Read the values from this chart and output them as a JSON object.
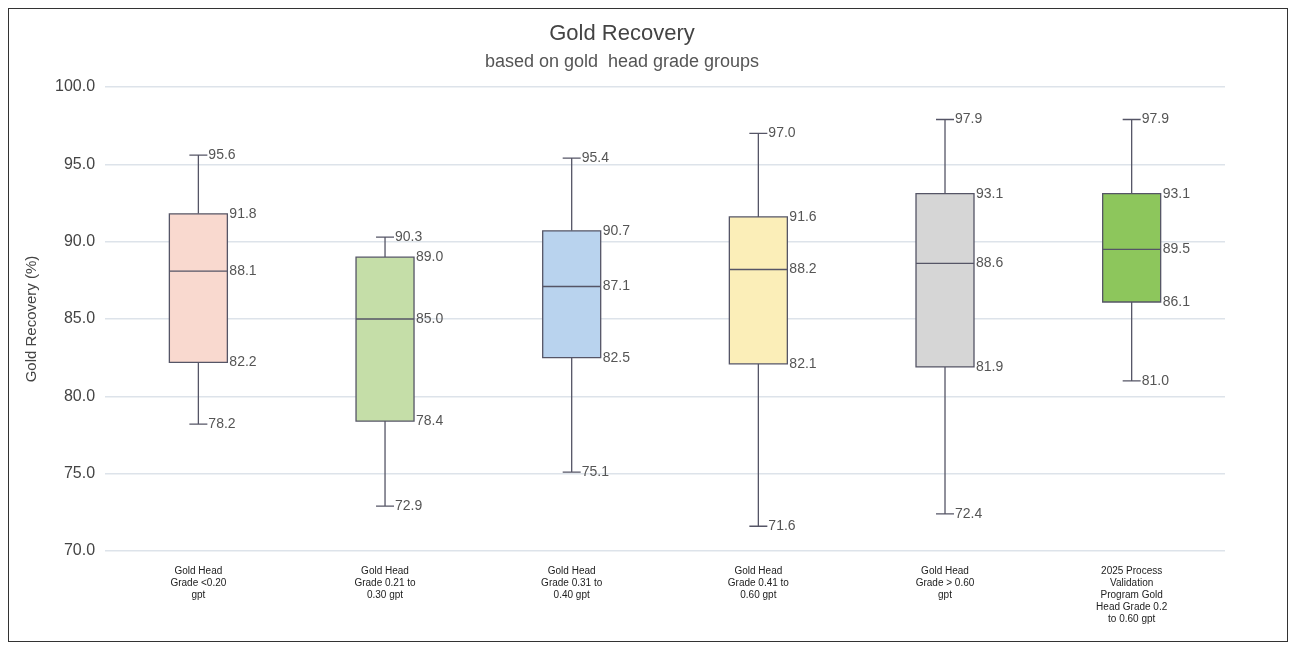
{
  "chart_data": {
    "type": "box",
    "title": "Gold Recovery",
    "subtitle": "based on gold  head grade groups",
    "ylabel": "Gold Recovery (%)",
    "categories": [
      "Gold Head Grade <0.20 gpt",
      "Gold Head Grade 0.21 to 0.30 gpt",
      "Gold Head Grade 0.31 to 0.40 gpt",
      "Gold Head Grade 0.41 to 0.60 gpt",
      "Gold Head Grade > 0.60 gpt",
      "2025 Process Validation Program Gold Head Grade 0.2 to 0.60 gpt"
    ],
    "boxes": [
      {
        "low": 78.2,
        "q1": 82.2,
        "median": 88.1,
        "q3": 91.8,
        "high": 95.6
      },
      {
        "low": 72.9,
        "q1": 78.4,
        "median": 85.0,
        "q3": 89.0,
        "high": 90.3
      },
      {
        "low": 75.1,
        "q1": 82.5,
        "median": 87.1,
        "q3": 90.7,
        "high": 95.4
      },
      {
        "low": 71.6,
        "q1": 82.1,
        "median": 88.2,
        "q3": 91.6,
        "high": 97.0
      },
      {
        "low": 72.4,
        "q1": 81.9,
        "median": 88.6,
        "q3": 93.1,
        "high": 97.9
      },
      {
        "low": 81.0,
        "q1": 86.1,
        "median": 89.5,
        "q3": 93.1,
        "high": 97.9
      }
    ],
    "colors": [
      "#f9d9cf",
      "#c5dea8",
      "#b9d3ee",
      "#fbeeb8",
      "#d6d6d6",
      "#8dc65c"
    ],
    "ylim": [
      70,
      100
    ],
    "yticks": [
      {
        "value": 70,
        "label": "70.0"
      },
      {
        "value": 75,
        "label": "75.0"
      },
      {
        "value": 80,
        "label": "80.0"
      },
      {
        "value": 85,
        "label": "85.0"
      },
      {
        "value": 90,
        "label": "90.0"
      },
      {
        "value": 95,
        "label": "95.0"
      },
      {
        "value": 100,
        "label": "100.0"
      }
    ],
    "annotations": [
      {
        "text": "95.6",
        "x": "Gold Head Grade <0.20 gpt",
        "y": 95.6
      },
      {
        "text": "91.8",
        "x": "Gold Head Grade <0.20 gpt",
        "y": 91.8
      },
      {
        "text": "88.1",
        "x": "Gold Head Grade <0.20 gpt",
        "y": 88.1
      },
      {
        "text": "82.2",
        "x": "Gold Head Grade <0.20 gpt",
        "y": 82.2
      },
      {
        "text": "78.2",
        "x": "Gold Head Grade <0.20 gpt",
        "y": 78.2
      },
      {
        "text": "90.3",
        "x": "Gold Head Grade 0.21 to 0.30 gpt",
        "y": 90.3
      },
      {
        "text": "89.0",
        "x": "Gold Head Grade 0.21 to 0.30 gpt",
        "y": 89.0
      },
      {
        "text": "85.0",
        "x": "Gold Head Grade 0.21 to 0.30 gpt",
        "y": 85.0
      },
      {
        "text": "78.4",
        "x": "Gold Head Grade 0.21 to 0.30 gpt",
        "y": 78.4
      },
      {
        "text": "72.9",
        "x": "Gold Head Grade 0.21 to 0.30 gpt",
        "y": 72.9
      },
      {
        "text": "95.4",
        "x": "Gold Head Grade 0.31 to 0.40 gpt",
        "y": 95.4
      },
      {
        "text": "90.7",
        "x": "Gold Head Grade 0.31 to 0.40 gpt",
        "y": 90.7
      },
      {
        "text": "87.1",
        "x": "Gold Head Grade 0.31 to 0.40 gpt",
        "y": 87.1
      },
      {
        "text": "82.5",
        "x": "Gold Head Grade 0.31 to 0.40 gpt",
        "y": 82.5
      },
      {
        "text": "75.1",
        "x": "Gold Head Grade 0.31 to 0.40 gpt",
        "y": 75.1
      },
      {
        "text": "97.0",
        "x": "Gold Head Grade 0.41 to 0.60 gpt",
        "y": 97.0
      },
      {
        "text": "91.6",
        "x": "Gold Head Grade 0.41 to 0.60 gpt",
        "y": 91.6
      },
      {
        "text": "88.2",
        "x": "Gold Head Grade 0.41 to 0.60 gpt",
        "y": 88.2
      },
      {
        "text": "82.1",
        "x": "Gold Head Grade 0.41 to 0.60 gpt",
        "y": 82.1
      },
      {
        "text": "71.6",
        "x": "Gold Head Grade 0.41 to 0.60 gpt",
        "y": 71.6
      },
      {
        "text": "97.9",
        "x": "Gold Head Grade > 0.60 gpt",
        "y": 97.9
      },
      {
        "text": "93.1",
        "x": "Gold Head Grade > 0.60 gpt",
        "y": 93.1
      },
      {
        "text": "88.6",
        "x": "Gold Head Grade > 0.60 gpt",
        "y": 88.6
      },
      {
        "text": "81.9",
        "x": "Gold Head Grade > 0.60 gpt",
        "y": 81.9
      },
      {
        "text": "72.4",
        "x": "Gold Head Grade > 0.60 gpt",
        "y": 72.4
      },
      {
        "text": "97.9",
        "x": "2025 Process Validation Program Gold Head Grade 0.2 to 0.60 gpt",
        "y": 97.9
      },
      {
        "text": "93.1",
        "x": "2025 Process Validation Program Gold Head Grade 0.2 to 0.60 gpt",
        "y": 93.1
      },
      {
        "text": "89.5",
        "x": "2025 Process Validation Program Gold Head Grade 0.2 to 0.60 gpt",
        "y": 89.5
      },
      {
        "text": "86.1",
        "x": "2025 Process Validation Program Gold Head Grade 0.2 to 0.60 gpt",
        "y": 86.1
      },
      {
        "text": "81.0",
        "x": "2025 Process Validation Program Gold Head Grade 0.2 to 0.60 gpt",
        "y": 81.0
      }
    ],
    "grid": "y",
    "legend": false
  }
}
